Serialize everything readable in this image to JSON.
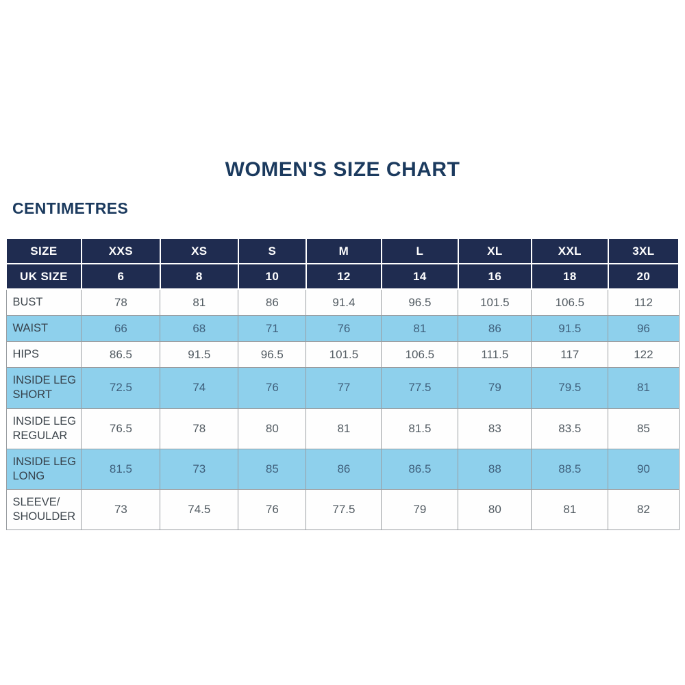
{
  "title": "WOMEN'S SIZE CHART",
  "unit_label": "CENTIMETRES",
  "colors": {
    "title_navy": "#1b3a5e",
    "header_navy": "#1f2c50",
    "row_light_blue": "#8ed0ec",
    "grid_gray": "#999da1"
  },
  "table": {
    "header_rows": [
      {
        "name": "size",
        "cells": [
          "SIZE",
          "XXS",
          "XS",
          "S",
          "M",
          "L",
          "XL",
          "XXL",
          "3XL"
        ]
      },
      {
        "name": "uk-size",
        "cells": [
          "UK SIZE",
          "6",
          "8",
          "10",
          "12",
          "14",
          "16",
          "18",
          "20"
        ]
      }
    ],
    "rows": [
      {
        "label": "BUST",
        "values": [
          "78",
          "81",
          "86",
          "91.4",
          "96.5",
          "101.5",
          "106.5",
          "112"
        ]
      },
      {
        "label": "WAIST",
        "values": [
          "66",
          "68",
          "71",
          "76",
          "81",
          "86",
          "91.5",
          "96"
        ]
      },
      {
        "label": "HIPS",
        "values": [
          "86.5",
          "91.5",
          "96.5",
          "101.5",
          "106.5",
          "111.5",
          "117",
          "122"
        ]
      },
      {
        "label": "INSIDE LEG\nSHORT",
        "values": [
          "72.5",
          "74",
          "76",
          "77",
          "77.5",
          "79",
          "79.5",
          "81"
        ]
      },
      {
        "label": "INSIDE LEG\nREGULAR",
        "values": [
          "76.5",
          "78",
          "80",
          "81",
          "81.5",
          "83",
          "83.5",
          "85"
        ]
      },
      {
        "label": "INSIDE LEG\nLONG",
        "values": [
          "81.5",
          "73",
          "85",
          "86",
          "86.5",
          "88",
          "88.5",
          "90"
        ]
      },
      {
        "label": "SLEEVE/\nSHOULDER",
        "values": [
          "73",
          "74.5",
          "76",
          "77.5",
          "79",
          "80",
          "81",
          "82"
        ]
      }
    ]
  }
}
